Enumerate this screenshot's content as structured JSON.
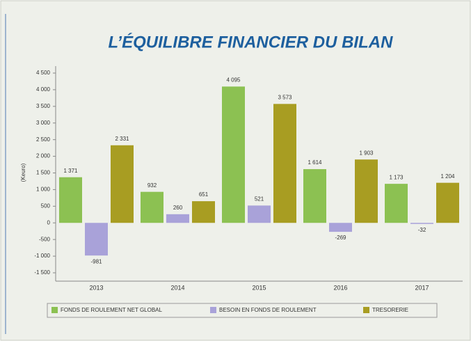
{
  "chart_data": {
    "type": "bar",
    "title": "L’ÉQUILIBRE FINANCIER DU BILAN",
    "y_label": "(Keuro)",
    "categories": [
      "2013",
      "2014",
      "2015",
      "2016",
      "2017"
    ],
    "series": [
      {
        "name": "FONDS DE ROULEMENT NET GLOBAL",
        "color": "#8cc152",
        "values": [
          1371,
          932,
          4095,
          1614,
          1173
        ],
        "value_labels": [
          "1 371",
          "932",
          "4 095",
          "1 614",
          "1 173"
        ]
      },
      {
        "name": "BESOIN EN FONDS DE ROULEMENT",
        "color": "#a9a2d9",
        "values": [
          -981,
          260,
          521,
          -269,
          -32
        ],
        "value_labels": [
          "-981",
          "260",
          "521",
          "-269",
          "-32"
        ]
      },
      {
        "name": "TRESORERIE",
        "color": "#a89d22",
        "values": [
          2331,
          651,
          3573,
          1903,
          1204
        ],
        "value_labels": [
          "2 331",
          "651",
          "3 573",
          "1 903",
          "1 204"
        ]
      }
    ],
    "ylim": [
      -1500,
      4500
    ],
    "yticks": [
      {
        "value": -1500,
        "label": "-1 500"
      },
      {
        "value": -1000,
        "label": "-1 000"
      },
      -500,
      0,
      500,
      {
        "value": 1000,
        "label": "1 000"
      },
      {
        "value": 1500,
        "label": "1 500"
      },
      {
        "value": 2000,
        "label": "2 000"
      },
      {
        "value": 2500,
        "label": "2 500"
      },
      {
        "value": 3000,
        "label": "3 000"
      },
      {
        "value": 3500,
        "label": "3 500"
      },
      {
        "value": 4000,
        "label": "4 000"
      },
      {
        "value": 4500,
        "label": "4 500"
      }
    ],
    "grid": false,
    "legend": "bottom"
  }
}
